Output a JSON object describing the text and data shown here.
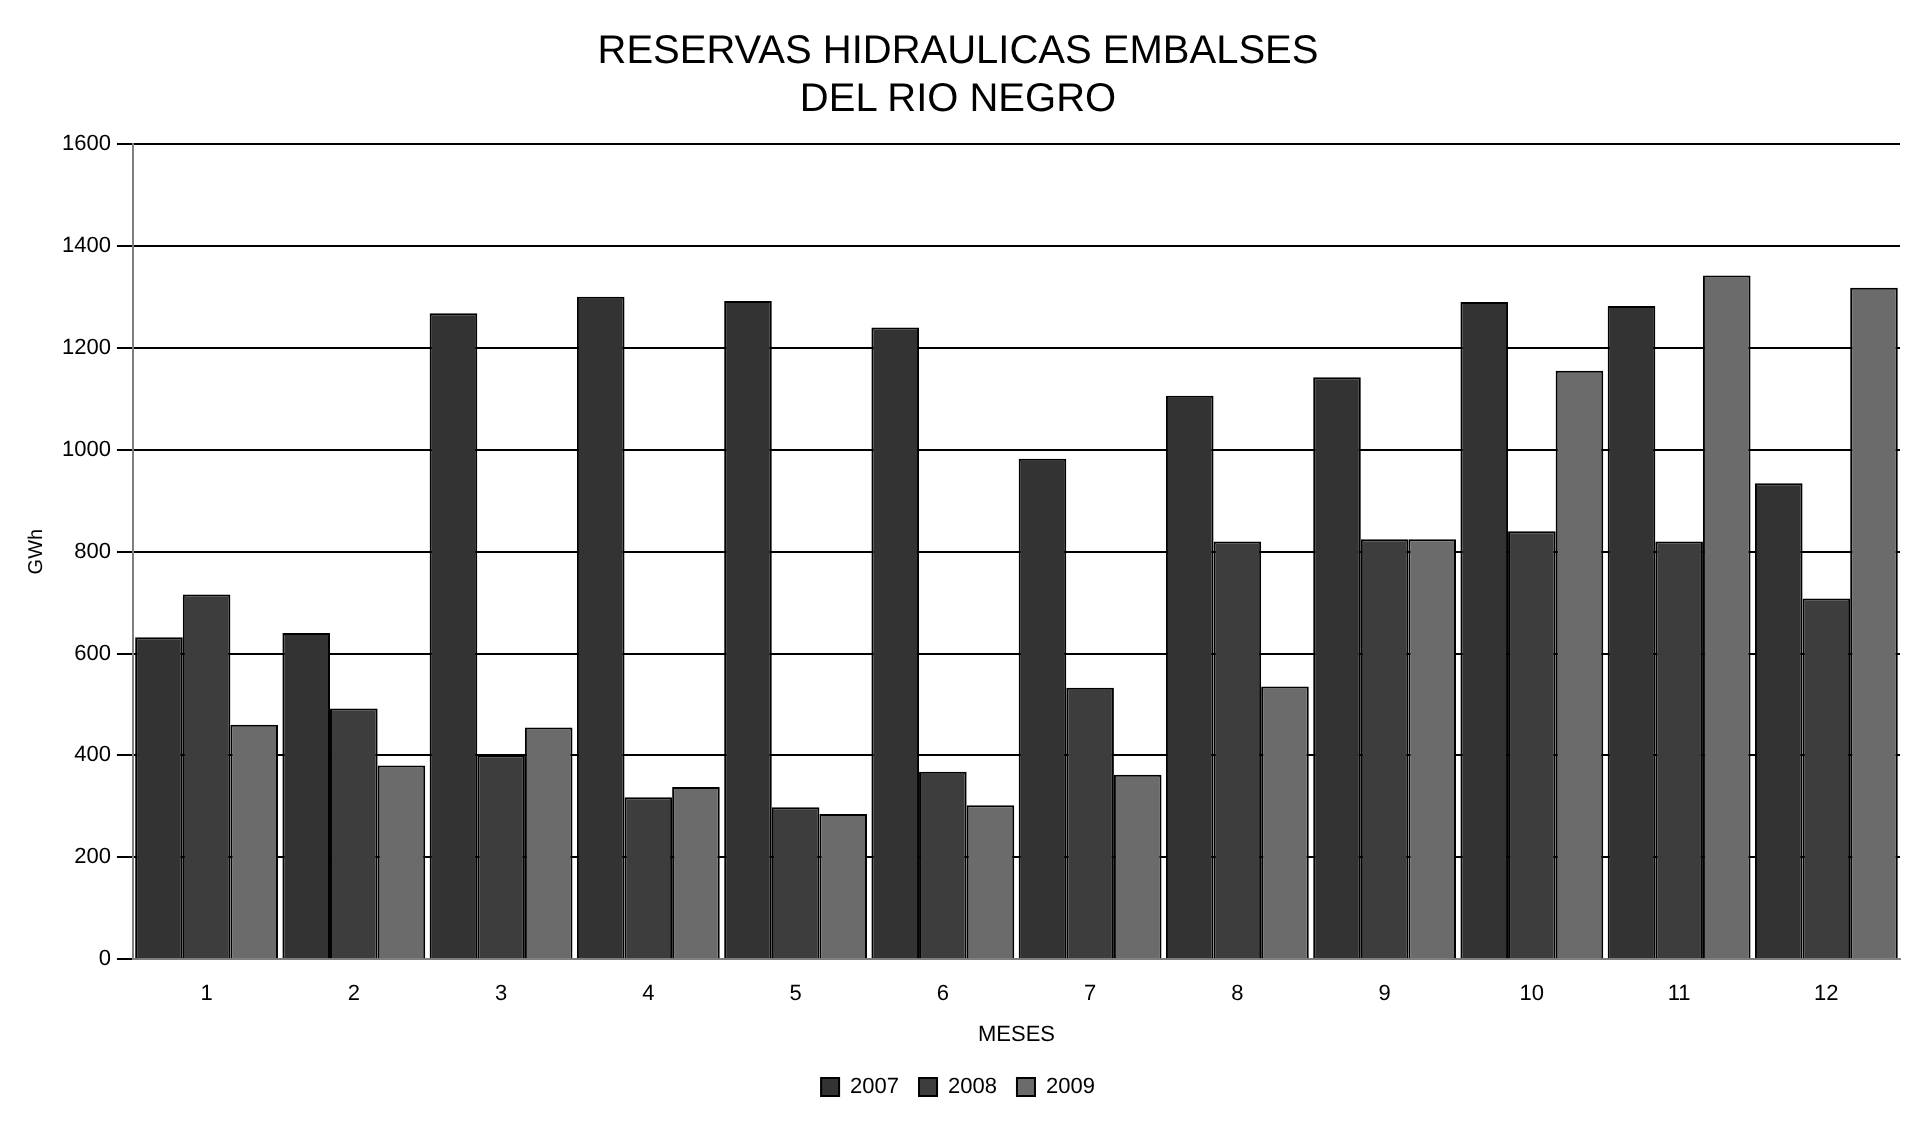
{
  "chart_data": {
    "type": "bar",
    "title": "RESERVAS HIDRAULICAS EMBALSES\nDEL RIO NEGRO",
    "xlabel": "MESES",
    "ylabel": "GWh",
    "categories": [
      "1",
      "2",
      "3",
      "4",
      "5",
      "6",
      "7",
      "8",
      "9",
      "10",
      "11",
      "12"
    ],
    "series": [
      {
        "name": "2007",
        "color": "#333333",
        "values": [
          632,
          640,
          1268,
          1300,
          1292,
          1240,
          982,
          1106,
          1142,
          1290,
          1282,
          934
        ]
      },
      {
        "name": "2008",
        "color": "#3d3d3d",
        "values": [
          716,
          492,
          400,
          318,
          298,
          368,
          533,
          820,
          824,
          840,
          820,
          708
        ]
      },
      {
        "name": "2009",
        "color": "#6b6b6b",
        "values": [
          460,
          380,
          455,
          338,
          285,
          302,
          362,
          535,
          824,
          1155,
          1342,
          1318
        ]
      }
    ],
    "ylim": [
      0,
      1600
    ],
    "yticks": [
      0,
      200,
      400,
      600,
      800,
      1000,
      1200,
      1400,
      1600
    ],
    "grid": "y",
    "legend": "bottom"
  }
}
